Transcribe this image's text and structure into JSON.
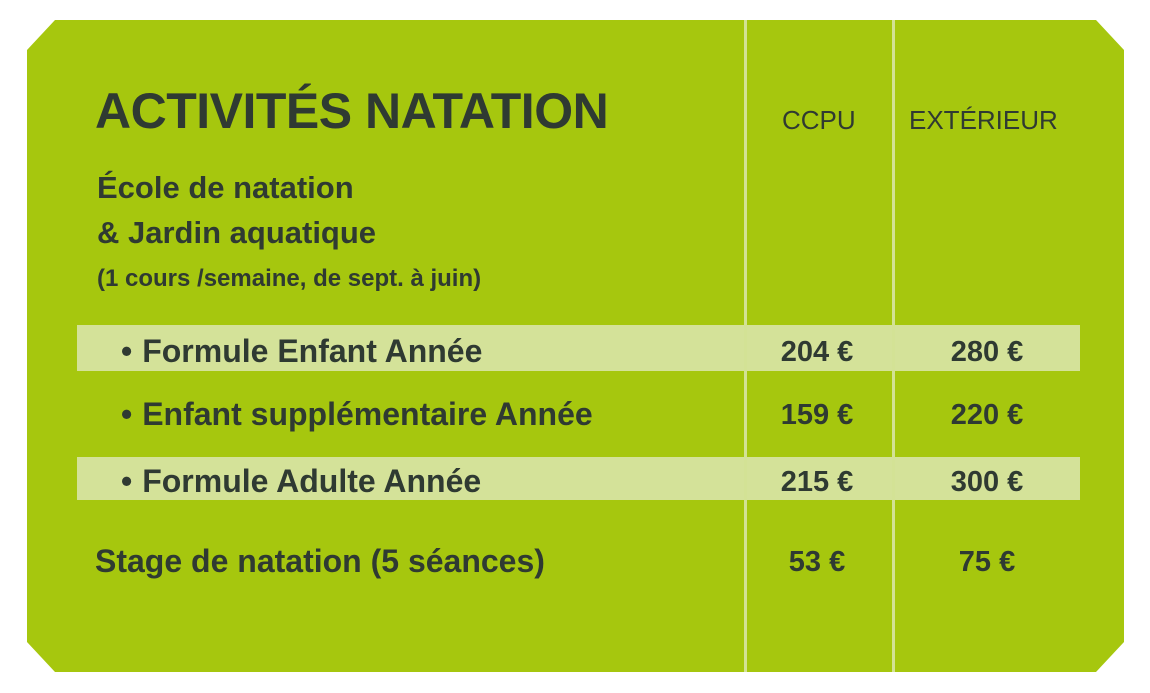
{
  "title": "ACTIVITÉS NATATION",
  "columns": {
    "ccpu": "CCPU",
    "exterieur": "EXTÉRIEUR"
  },
  "section": {
    "line1": "École de natation",
    "line2": "& Jardin aquatique",
    "note": "(1 cours /semaine, de sept. à juin)"
  },
  "bullet": "•",
  "rows": [
    {
      "label": "Formule Enfant Année",
      "ccpu": "204 €",
      "exterieur": "280 €"
    },
    {
      "label": "Enfant supplémentaire Année",
      "ccpu": "159 €",
      "exterieur": "220 €"
    },
    {
      "label": "Formule Adulte Année",
      "ccpu": "215 €",
      "exterieur": "300 €"
    },
    {
      "label": "Stage de natation (5 séances)",
      "ccpu": "53 €",
      "exterieur": "75 €"
    }
  ],
  "colors": {
    "card": "#a6c70e",
    "band": "#d4e299",
    "text": "#2f3a32"
  }
}
